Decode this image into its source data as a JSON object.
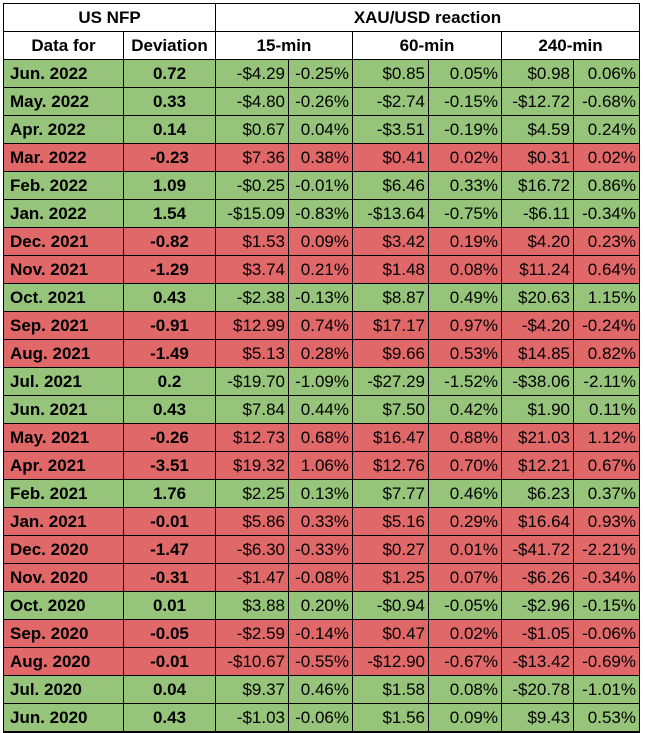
{
  "header": {
    "group_left": "US NFP",
    "group_right": "XAU/USD reaction",
    "col_date": "Data for",
    "col_deviation": "Deviation",
    "col_15": "15-min",
    "col_60": "60-min",
    "col_240": "240-min"
  },
  "colors": {
    "positive_row": "#96c47a",
    "negative_row": "#e06868"
  },
  "rows": [
    {
      "date": "Jun. 2022",
      "dev": "0.72",
      "r15d": "-$4.29",
      "r15p": "-0.25%",
      "r60d": "$0.85",
      "r60p": "0.05%",
      "r240d": "$0.98",
      "r240p": "0.06%",
      "sign": "pos"
    },
    {
      "date": "May. 2022",
      "dev": "0.33",
      "r15d": "-$4.80",
      "r15p": "-0.26%",
      "r60d": "-$2.74",
      "r60p": "-0.15%",
      "r240d": "-$12.72",
      "r240p": "-0.68%",
      "sign": "pos"
    },
    {
      "date": "Apr. 2022",
      "dev": "0.14",
      "r15d": "$0.67",
      "r15p": "0.04%",
      "r60d": "-$3.51",
      "r60p": "-0.19%",
      "r240d": "$4.59",
      "r240p": "0.24%",
      "sign": "pos"
    },
    {
      "date": "Mar. 2022",
      "dev": "-0.23",
      "r15d": "$7.36",
      "r15p": "0.38%",
      "r60d": "$0.41",
      "r60p": "0.02%",
      "r240d": "$0.31",
      "r240p": "0.02%",
      "sign": "neg"
    },
    {
      "date": "Feb. 2022",
      "dev": "1.09",
      "r15d": "-$0.25",
      "r15p": "-0.01%",
      "r60d": "$6.46",
      "r60p": "0.33%",
      "r240d": "$16.72",
      "r240p": "0.86%",
      "sign": "pos"
    },
    {
      "date": "Jan. 2022",
      "dev": "1.54",
      "r15d": "-$15.09",
      "r15p": "-0.83%",
      "r60d": "-$13.64",
      "r60p": "-0.75%",
      "r240d": "-$6.11",
      "r240p": "-0.34%",
      "sign": "pos"
    },
    {
      "date": "Dec. 2021",
      "dev": "-0.82",
      "r15d": "$1.53",
      "r15p": "0.09%",
      "r60d": "$3.42",
      "r60p": "0.19%",
      "r240d": "$4.20",
      "r240p": "0.23%",
      "sign": "neg"
    },
    {
      "date": "Nov. 2021",
      "dev": "-1.29",
      "r15d": "$3.74",
      "r15p": "0.21%",
      "r60d": "$1.48",
      "r60p": "0.08%",
      "r240d": "$11.24",
      "r240p": "0.64%",
      "sign": "neg"
    },
    {
      "date": "Oct. 2021",
      "dev": "0.43",
      "r15d": "-$2.38",
      "r15p": "-0.13%",
      "r60d": "$8.87",
      "r60p": "0.49%",
      "r240d": "$20.63",
      "r240p": "1.15%",
      "sign": "pos"
    },
    {
      "date": "Sep. 2021",
      "dev": "-0.91",
      "r15d": "$12.99",
      "r15p": "0.74%",
      "r60d": "$17.17",
      "r60p": "0.97%",
      "r240d": "-$4.20",
      "r240p": "-0.24%",
      "sign": "neg"
    },
    {
      "date": "Aug. 2021",
      "dev": "-1.49",
      "r15d": "$5.13",
      "r15p": "0.28%",
      "r60d": "$9.66",
      "r60p": "0.53%",
      "r240d": "$14.85",
      "r240p": "0.82%",
      "sign": "neg"
    },
    {
      "date": "Jul. 2021",
      "dev": "0.2",
      "r15d": "-$19.70",
      "r15p": "-1.09%",
      "r60d": "-$27.29",
      "r60p": "-1.52%",
      "r240d": "-$38.06",
      "r240p": "-2.11%",
      "sign": "pos"
    },
    {
      "date": "Jun. 2021",
      "dev": "0.43",
      "r15d": "$7.84",
      "r15p": "0.44%",
      "r60d": "$7.50",
      "r60p": "0.42%",
      "r240d": "$1.90",
      "r240p": "0.11%",
      "sign": "pos"
    },
    {
      "date": "May. 2021",
      "dev": "-0.26",
      "r15d": "$12.73",
      "r15p": "0.68%",
      "r60d": "$16.47",
      "r60p": "0.88%",
      "r240d": "$21.03",
      "r240p": "1.12%",
      "sign": "neg"
    },
    {
      "date": "Apr. 2021",
      "dev": "-3.51",
      "r15d": "$19.32",
      "r15p": "1.06%",
      "r60d": "$12.76",
      "r60p": "0.70%",
      "r240d": "$12.21",
      "r240p": "0.67%",
      "sign": "neg"
    },
    {
      "date": "Feb. 2021",
      "dev": "1.76",
      "r15d": "$2.25",
      "r15p": "0.13%",
      "r60d": "$7.77",
      "r60p": "0.46%",
      "r240d": "$6.23",
      "r240p": "0.37%",
      "sign": "pos"
    },
    {
      "date": "Jan. 2021",
      "dev": "-0.01",
      "r15d": "$5.86",
      "r15p": "0.33%",
      "r60d": "$5.16",
      "r60p": "0.29%",
      "r240d": "$16.64",
      "r240p": "0.93%",
      "sign": "neg"
    },
    {
      "date": "Dec. 2020",
      "dev": "-1.47",
      "r15d": "-$6.30",
      "r15p": "-0.33%",
      "r60d": "$0.27",
      "r60p": "0.01%",
      "r240d": "-$41.72",
      "r240p": "-2.21%",
      "sign": "neg"
    },
    {
      "date": "Nov. 2020",
      "dev": "-0.31",
      "r15d": "-$1.47",
      "r15p": "-0.08%",
      "r60d": "$1.25",
      "r60p": "0.07%",
      "r240d": "-$6.26",
      "r240p": "-0.34%",
      "sign": "neg"
    },
    {
      "date": "Oct. 2020",
      "dev": "0.01",
      "r15d": "$3.88",
      "r15p": "0.20%",
      "r60d": "-$0.94",
      "r60p": "-0.05%",
      "r240d": "-$2.96",
      "r240p": "-0.15%",
      "sign": "pos"
    },
    {
      "date": "Sep. 2020",
      "dev": "-0.05",
      "r15d": "-$2.59",
      "r15p": "-0.14%",
      "r60d": "$0.47",
      "r60p": "0.02%",
      "r240d": "-$1.05",
      "r240p": "-0.06%",
      "sign": "neg"
    },
    {
      "date": "Aug. 2020",
      "dev": "-0.01",
      "r15d": "-$10.67",
      "r15p": "-0.55%",
      "r60d": "-$12.90",
      "r60p": "-0.67%",
      "r240d": "-$13.42",
      "r240p": "-0.69%",
      "sign": "neg"
    },
    {
      "date": "Jul. 2020",
      "dev": "0.04",
      "r15d": "$9.37",
      "r15p": "0.46%",
      "r60d": "$1.58",
      "r60p": "0.08%",
      "r240d": "-$20.78",
      "r240p": "-1.01%",
      "sign": "pos"
    },
    {
      "date": "Jun. 2020",
      "dev": "0.43",
      "r15d": "-$1.03",
      "r15p": "-0.06%",
      "r60d": "$1.56",
      "r60p": "0.09%",
      "r240d": "$9.43",
      "r240p": "0.53%",
      "sign": "pos"
    }
  ]
}
